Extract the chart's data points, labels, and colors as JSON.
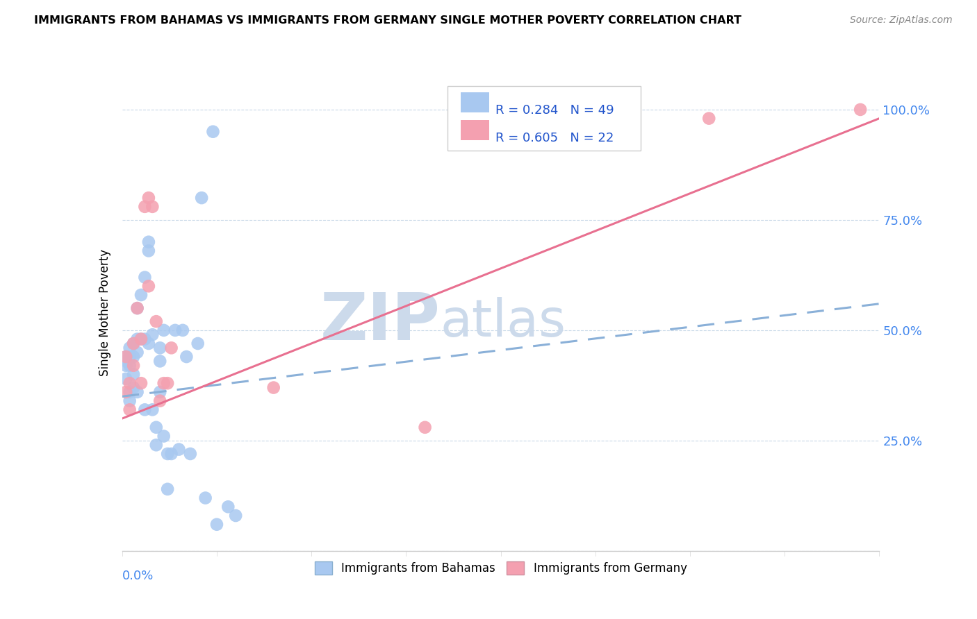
{
  "title": "IMMIGRANTS FROM BAHAMAS VS IMMIGRANTS FROM GERMANY SINGLE MOTHER POVERTY CORRELATION CHART",
  "source": "Source: ZipAtlas.com",
  "ylabel": "Single Mother Poverty",
  "yticks": [
    0.0,
    0.25,
    0.5,
    0.75,
    1.0
  ],
  "ytick_labels": [
    "",
    "25.0%",
    "50.0%",
    "75.0%",
    "100.0%"
  ],
  "xmin": 0.0,
  "xmax": 0.2,
  "ymin": 0.0,
  "ymax": 1.08,
  "bahamas_R": 0.284,
  "bahamas_N": 49,
  "germany_R": 0.605,
  "germany_N": 22,
  "bahamas_color": "#a8c8f0",
  "germany_color": "#f4a0b0",
  "bahamas_line_color": "#8ab0d8",
  "germany_line_color": "#e87090",
  "watermark_zip": "ZIP",
  "watermark_atlas": "atlas",
  "watermark_color": "#ccdaeb",
  "bahamas_x": [
    0.001,
    0.001,
    0.001,
    0.001,
    0.002,
    0.002,
    0.002,
    0.002,
    0.002,
    0.003,
    0.003,
    0.003,
    0.003,
    0.004,
    0.004,
    0.004,
    0.004,
    0.005,
    0.005,
    0.006,
    0.006,
    0.006,
    0.007,
    0.007,
    0.007,
    0.008,
    0.008,
    0.009,
    0.009,
    0.01,
    0.01,
    0.01,
    0.011,
    0.011,
    0.012,
    0.012,
    0.013,
    0.014,
    0.015,
    0.016,
    0.017,
    0.018,
    0.02,
    0.021,
    0.022,
    0.024,
    0.025,
    0.028,
    0.03
  ],
  "bahamas_y": [
    0.44,
    0.43,
    0.42,
    0.39,
    0.46,
    0.44,
    0.42,
    0.36,
    0.34,
    0.47,
    0.44,
    0.4,
    0.37,
    0.55,
    0.48,
    0.45,
    0.36,
    0.58,
    0.48,
    0.62,
    0.48,
    0.32,
    0.7,
    0.68,
    0.47,
    0.49,
    0.32,
    0.28,
    0.24,
    0.46,
    0.43,
    0.36,
    0.5,
    0.26,
    0.22,
    0.14,
    0.22,
    0.5,
    0.23,
    0.5,
    0.44,
    0.22,
    0.47,
    0.8,
    0.12,
    0.95,
    0.06,
    0.1,
    0.08
  ],
  "germany_x": [
    0.001,
    0.001,
    0.002,
    0.002,
    0.003,
    0.003,
    0.004,
    0.005,
    0.005,
    0.006,
    0.007,
    0.007,
    0.008,
    0.009,
    0.01,
    0.011,
    0.012,
    0.013,
    0.04,
    0.08,
    0.155,
    0.195
  ],
  "germany_y": [
    0.44,
    0.36,
    0.38,
    0.32,
    0.47,
    0.42,
    0.55,
    0.48,
    0.38,
    0.78,
    0.8,
    0.6,
    0.78,
    0.52,
    0.34,
    0.38,
    0.38,
    0.46,
    0.37,
    0.28,
    0.98,
    1.0
  ],
  "bahamas_line_x0": 0.0,
  "bahamas_line_y0": 0.35,
  "bahamas_line_x1": 0.2,
  "bahamas_line_y1": 0.56,
  "germany_line_x0": 0.0,
  "germany_line_y0": 0.3,
  "germany_line_x1": 0.2,
  "germany_line_y1": 0.98
}
